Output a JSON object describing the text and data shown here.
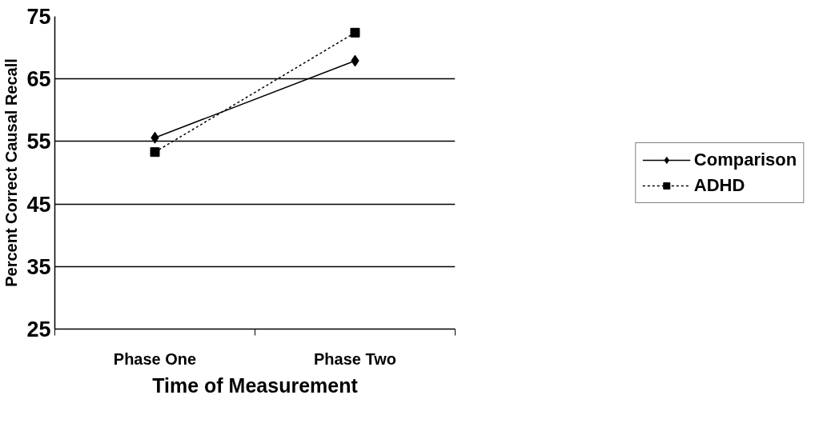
{
  "chart_data": {
    "type": "line",
    "xlabel": "Time of Measurement",
    "ylabel": "Percent Correct Causal Recall",
    "categories": [
      "Phase One",
      "Phase Two"
    ],
    "series": [
      {
        "name": "Comparison",
        "color": "#000000",
        "values": [
          55.6,
          67.9
        ],
        "marker": "diamond",
        "line_style": "solid"
      },
      {
        "name": "ADHD",
        "color": "#000000",
        "values": [
          53.3,
          72.4
        ],
        "marker": "square",
        "line_style": "dashed"
      }
    ],
    "ylim": [
      25,
      75
    ],
    "yticks": [
      25,
      35,
      45,
      55,
      65,
      75
    ],
    "grid": "y",
    "legend": "right"
  }
}
